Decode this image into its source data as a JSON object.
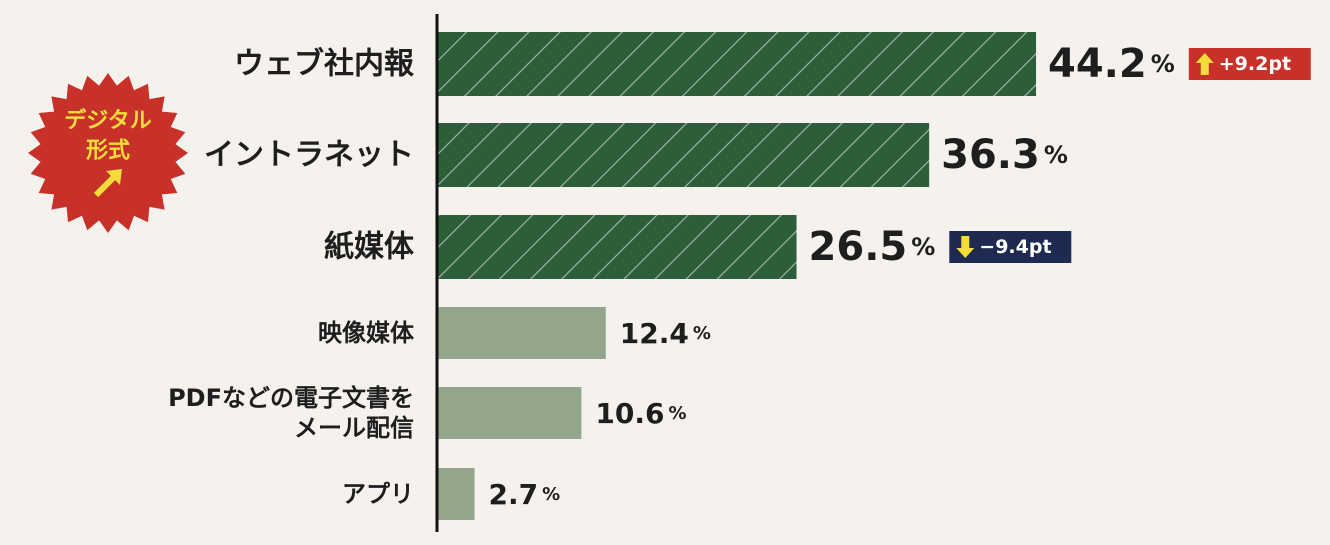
{
  "chart_data": {
    "type": "bar",
    "orientation": "horizontal",
    "unit": "%",
    "categories": [
      "ウェブ社内報",
      "イントラネット",
      "紙媒体",
      "映像媒体",
      "PDFなどの電子文書をメール配信",
      "アプリ"
    ],
    "category_lines": [
      [
        "ウェブ社内報"
      ],
      [
        "イントラネット"
      ],
      [
        "紙媒体"
      ],
      [
        "映像媒体"
      ],
      [
        "PDFなどの電子文書を",
        "メール配信"
      ],
      [
        "アプリ"
      ]
    ],
    "values": [
      44.2,
      36.3,
      26.5,
      12.4,
      10.6,
      2.7
    ],
    "value_labels": [
      "44.2",
      "36.3",
      "26.5",
      "12.4",
      "10.6",
      "2.7"
    ],
    "highlighted": [
      true,
      true,
      true,
      false,
      false,
      false
    ],
    "changes": [
      {
        "index": 0,
        "direction": "up",
        "text": "+9.2pt",
        "arrow": "up-arrow",
        "color": "#c8312a"
      },
      {
        "index": 2,
        "direction": "down",
        "text": "−9.4pt",
        "arrow": "down-arrow",
        "color": "#1e2a52"
      }
    ],
    "colors": {
      "highlight_bar": "#2d5e3a",
      "highlight_stripe": "#a8bca8",
      "normal_bar": "#93a68b",
      "axis": "#111111",
      "stamp": "#c8312a",
      "stamp_text": "#f4dc3a",
      "background": "#f5f2ed"
    },
    "xlim": [
      0,
      50
    ],
    "grid": false
  },
  "stamp": {
    "lines": [
      "デジタル",
      "形式"
    ],
    "icon": "arrow-up-right-icon"
  }
}
